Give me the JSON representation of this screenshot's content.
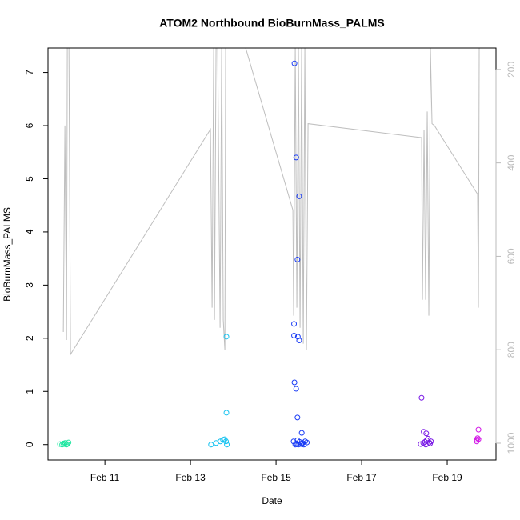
{
  "chart_data": {
    "type": "scatter",
    "title": "ATOM2 Northbound BioBurnMass_PALMS",
    "x_label": "Date",
    "y_label": "BioBurnMass_PALMS",
    "xlim": [
      9.67,
      20.14
    ],
    "xticks": [
      {
        "value": 11,
        "label": "Feb 11"
      },
      {
        "value": 13,
        "label": "Feb 13"
      },
      {
        "value": 15,
        "label": "Feb 15"
      },
      {
        "value": 17,
        "label": "Feb 17"
      },
      {
        "value": 19,
        "label": "Feb 19"
      }
    ],
    "ylim": [
      -0.29,
      7.46
    ],
    "yticks": [
      0,
      1,
      2,
      3,
      4,
      5,
      6,
      7
    ],
    "y2lim": [
      1036,
      154
    ],
    "y2ticks": [
      200,
      400,
      600,
      800,
      1000
    ],
    "y2_color": "#bbbbbb",
    "series": [
      {
        "color": "#1ee6a0",
        "x": [
          9.95,
          10.0,
          10.03,
          10.05,
          10.07,
          10.1,
          10.12,
          10.15
        ],
        "values": [
          0.01,
          0.0,
          0.02,
          0.01,
          0.03,
          0.0,
          0.01,
          0.04
        ]
      },
      {
        "color": "#19c3f0",
        "x": [
          13.48,
          13.6,
          13.7,
          13.76,
          13.8,
          13.83,
          13.85,
          13.84,
          13.84
        ],
        "values": [
          0.0,
          0.03,
          0.06,
          0.09,
          0.1,
          0.06,
          0.0,
          2.03,
          0.6
        ]
      },
      {
        "color": "#1a3cf5",
        "x": [
          15.43,
          15.47,
          15.54,
          15.5,
          15.42,
          15.42,
          15.51,
          15.54,
          15.43,
          15.47,
          15.5,
          15.6,
          15.41,
          15.45,
          15.48,
          15.52,
          15.55,
          15.58,
          15.62,
          15.65,
          15.68,
          15.72,
          15.5,
          15.6
        ],
        "values": [
          7.17,
          5.4,
          4.67,
          3.48,
          2.27,
          2.05,
          2.03,
          1.96,
          1.17,
          1.05,
          0.51,
          0.22,
          0.06,
          0.0,
          0.02,
          0.0,
          0.05,
          0.01,
          0.03,
          0.0,
          0.06,
          0.04,
          0.08,
          0.02
        ]
      },
      {
        "color": "#7a1ae6",
        "x": [
          18.4,
          18.45,
          18.51,
          18.38,
          18.44,
          18.48,
          18.52,
          18.55,
          18.58,
          18.6,
          18.5,
          18.62
        ],
        "values": [
          0.88,
          0.24,
          0.21,
          0.01,
          0.03,
          0.05,
          0.08,
          0.11,
          0.04,
          0.02,
          0.0,
          0.06
        ]
      },
      {
        "color": "#d21ae6",
        "x": [
          19.73,
          19.71,
          19.69,
          19.69,
          19.73
        ],
        "values": [
          0.28,
          0.12,
          0.09,
          0.06,
          0.1
        ]
      },
      {
        "type": "line",
        "axis": "y2",
        "color": "#bebebe",
        "x": [
          10.028,
          10.065,
          10.103,
          10.121,
          10.159,
          10.196,
          13.467,
          13.505,
          13.542,
          13.561,
          13.598,
          13.636,
          13.692,
          13.729,
          13.766,
          13.804,
          13.822,
          14.29,
          15.393,
          15.411,
          15.449,
          15.486,
          15.523,
          15.561,
          15.598,
          15.636,
          15.673,
          15.71,
          15.748,
          18.402,
          18.421,
          18.458,
          18.495,
          18.533,
          18.57,
          18.607,
          18.645,
          18.701,
          19.71,
          19.729,
          19.748
        ],
        "values": [
          762,
          320,
          779,
          154,
          154,
          810,
          328,
          710,
          154,
          736,
          154,
          154,
          753,
          154,
          736,
          801,
          154,
          154,
          501,
          727,
          154,
          710,
          154,
          753,
          154,
          787,
          154,
          801,
          316,
          346,
          693,
          330,
          693,
          290,
          727,
          154,
          316,
          320,
          467,
          710,
          154
        ]
      }
    ]
  }
}
